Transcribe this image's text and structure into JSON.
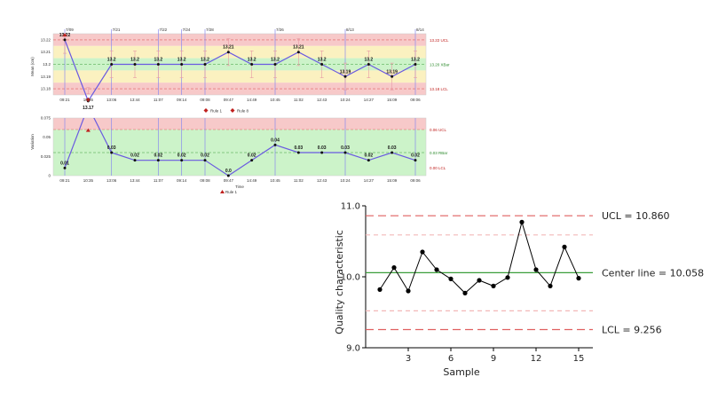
{
  "chart_data": [
    {
      "type": "line",
      "title": "",
      "xlabel": "",
      "ylabel": "Mean (cm)",
      "categories": [
        "09:21",
        "10:35",
        "13:06",
        "13:44",
        "11:07",
        "09:14",
        "09:08",
        "09:47",
        "14:49",
        "10:45",
        "11:02",
        "12:43",
        "10:24",
        "14:27",
        "15:09",
        "09:06"
      ],
      "series": [
        {
          "name": "",
          "values": [
            13.22,
            13.17,
            13.2,
            13.2,
            13.2,
            13.2,
            13.2,
            13.21,
            13.2,
            13.2,
            13.21,
            13.2,
            13.19,
            13.2,
            13.19,
            13.2
          ]
        }
      ],
      "point_labels": [
        "13.22",
        "13.17",
        "13.2",
        "13.2",
        "13.2",
        "13.2",
        "13.2",
        "13.21",
        "13.2",
        "13.2",
        "13.21",
        "13.2",
        "13.19",
        "13.2",
        "13.19",
        "13.2"
      ],
      "y_ticks": [
        "13.22",
        "13.21",
        "13.2",
        "13.19",
        "13.18"
      ],
      "ylim": [
        13.175,
        13.225
      ],
      "control_lines": {
        "ucl": 13.22,
        "center": 13.2,
        "lcl": 13.18
      },
      "control_labels": {
        "ucl": "13.22 UCL",
        "center": "13.20 XBar",
        "lcl": "13.18 LCL"
      },
      "event_labels": [
        "7/09",
        "7/21",
        "7/22",
        "7/24",
        "7/28",
        "7/26",
        "8/13",
        "8/14"
      ],
      "event_indices": [
        0,
        2,
        4,
        5,
        6,
        9,
        12,
        15
      ],
      "legend": [
        "Rule 1",
        "Rule 8"
      ],
      "colors": {
        "line": "#6a5ae0",
        "band_red": "#f7c9c9",
        "band_yellow": "#fbf1c0",
        "band_green": "#ccf3c9",
        "event": "#8a8aee",
        "rule": "#c0201e"
      }
    },
    {
      "type": "line",
      "title": "",
      "xlabel": "Time",
      "ylabel": "Variation",
      "categories": [
        "09:21",
        "10:35",
        "13:06",
        "13:44",
        "11:07",
        "09:14",
        "09:08",
        "09:47",
        "14:49",
        "10:45",
        "11:02",
        "12:43",
        "10:24",
        "14:27",
        "15:09",
        "09:06"
      ],
      "series": [
        {
          "name": "",
          "values": [
            0.01,
            0.09,
            0.03,
            0.02,
            0.02,
            0.02,
            0.02,
            0.0,
            0.02,
            0.04,
            0.03,
            0.03,
            0.03,
            0.02,
            0.03,
            0.02
          ]
        }
      ],
      "point_labels": [
        "0.01",
        "",
        "0.03",
        "0.02",
        "0.02",
        "0.02",
        "0.02",
        "0.0",
        "0.02",
        "0.04",
        "0.03",
        "0.03",
        "0.03",
        "0.02",
        "0.03",
        "0.02"
      ],
      "y_ticks": [
        "0.075",
        "0.05",
        "0.025",
        "0"
      ],
      "ylim": [
        0,
        0.075
      ],
      "control_lines": {
        "ucl": 0.06,
        "center": 0.03
      },
      "control_labels": {
        "ucl": "0.06 UCL",
        "center": "0.03 RBar",
        "lcl": "0.00 LCL"
      },
      "rule_indices": [
        1
      ],
      "legend": [
        "Rule 1"
      ]
    },
    {
      "type": "line",
      "title": "",
      "xlabel": "Sample",
      "ylabel": "Quality characteristic",
      "x": [
        1,
        2,
        3,
        4,
        5,
        6,
        7,
        8,
        9,
        10,
        11,
        12,
        13,
        14,
        15
      ],
      "series": [
        {
          "name": "",
          "values": [
            9.82,
            10.13,
            9.8,
            10.35,
            10.1,
            9.97,
            9.77,
            9.95,
            9.87,
            9.99,
            10.77,
            10.1,
            9.87,
            10.42,
            9.98
          ]
        }
      ],
      "x_ticks": [
        3,
        6,
        9,
        12,
        15
      ],
      "y_ticks": [
        "9.0",
        "10.0",
        "11.0"
      ],
      "xlim": [
        0,
        16
      ],
      "ylim": [
        9.0,
        11.0
      ],
      "control_lines": {
        "ucl": 10.86,
        "center": 10.058,
        "lcl": 9.256,
        "upper_inner": 10.59,
        "lower_inner": 9.52
      },
      "control_labels": {
        "ucl": "UCL = 10.860",
        "center": "Center line = 10.058",
        "lcl": "LCL = 9.256"
      },
      "colors": {
        "line": "#000000",
        "limit": "#e06060",
        "inner": "#f3b8b8",
        "center": "#3b9e3b"
      }
    }
  ]
}
